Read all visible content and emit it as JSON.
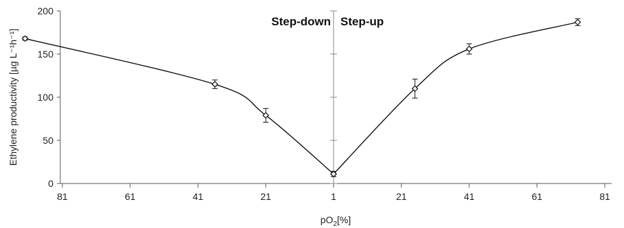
{
  "chart_data": {
    "type": "scatter",
    "title": "",
    "xlabel_prefix": "pO",
    "xlabel_sub": "2",
    "xlabel_suffix": "[%]",
    "ylabel": "Ethylene productivity [µg L⁻¹h⁻¹]",
    "x_tick_labels": [
      "81",
      "61",
      "41",
      "21",
      "1",
      "21",
      "41",
      "61",
      "81"
    ],
    "y_ticks": [
      0,
      50,
      100,
      150,
      200
    ],
    "ylim": [
      0,
      200
    ],
    "regions": [
      {
        "name": "Step-down",
        "xlim": [
          81,
          1
        ]
      },
      {
        "name": "Step-up",
        "xlim": [
          1,
          81
        ]
      }
    ],
    "series": [
      {
        "name": "Step-down",
        "x": [
          92,
          36,
          21,
          1
        ],
        "y": [
          168,
          115,
          79,
          11
        ],
        "err": [
          2,
          5,
          8,
          3
        ]
      },
      {
        "name": "Step-up",
        "x": [
          1,
          25,
          41,
          73
        ],
        "y": [
          11,
          110,
          156,
          187
        ],
        "err": [
          3,
          11,
          6,
          4
        ]
      }
    ],
    "grid": false,
    "colors": {
      "marker": "#111111",
      "line": "#111111",
      "axis": "#555555"
    }
  }
}
